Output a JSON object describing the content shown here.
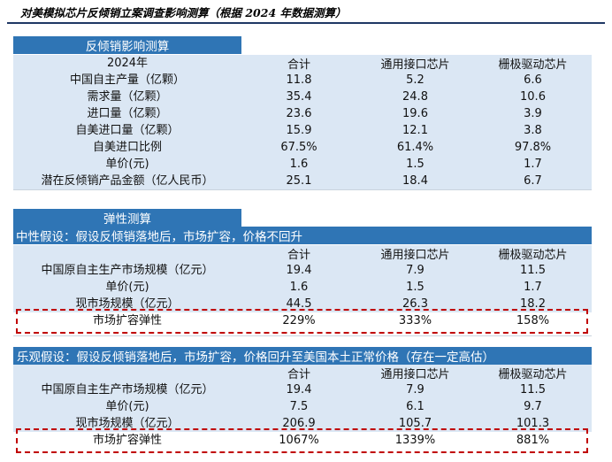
{
  "title": "对美模拟芯片反倾销立案调查影响测算（根据 2024 年数据测算）",
  "columns": [
    "合计",
    "通用接口芯片",
    "栅极驱动芯片"
  ],
  "table1": {
    "header": "反倾销影响测算",
    "year_label": "2024年",
    "rows": [
      {
        "label": "中国自主产量（亿颗）",
        "v": [
          "11.8",
          "5.2",
          "6.6"
        ]
      },
      {
        "label": "需求量（亿颗）",
        "v": [
          "35.4",
          "24.8",
          "10.6"
        ]
      },
      {
        "label": "进口量（亿颗）",
        "v": [
          "23.6",
          "19.6",
          "3.9"
        ]
      },
      {
        "label": "自美进口量（亿颗）",
        "v": [
          "15.9",
          "12.1",
          "3.8"
        ]
      },
      {
        "label": "自美进口比例",
        "v": [
          "67.5%",
          "61.4%",
          "97.8%"
        ]
      },
      {
        "label": "单价(元)",
        "v": [
          "1.6",
          "1.5",
          "1.7"
        ]
      },
      {
        "label": "潜在反倾销产品金额（亿人民币）",
        "v": [
          "25.1",
          "18.4",
          "6.7"
        ]
      }
    ]
  },
  "table2": {
    "header": "弹性测算",
    "scenario": "中性假设：假设反倾销落地后，市场扩容，价格不回升",
    "rows": [
      {
        "label": "中国原自主生产市场规模（亿元）",
        "v": [
          "19.4",
          "7.9",
          "11.5"
        ]
      },
      {
        "label": "单价(元)",
        "v": [
          "1.6",
          "1.5",
          "1.7"
        ]
      },
      {
        "label": "现市场规模（亿元）",
        "v": [
          "44.5",
          "26.3",
          "18.2"
        ]
      },
      {
        "label": "市场扩容弹性",
        "v": [
          "229%",
          "333%",
          "158%"
        ]
      }
    ]
  },
  "table3": {
    "scenario": "乐观假设：假设反倾销落地后，市场扩容，价格回升至美国本土正常价格（存在一定高估）",
    "rows": [
      {
        "label": "中国原自主生产市场规模（亿元）",
        "v": [
          "19.4",
          "7.9",
          "11.5"
        ]
      },
      {
        "label": "单价(元)",
        "v": [
          "7.5",
          "6.1",
          "9.7"
        ]
      },
      {
        "label": "现市场规模（亿元）",
        "v": [
          "206.9",
          "105.7",
          "101.3"
        ]
      },
      {
        "label": "市场扩容弹性",
        "v": [
          "1067%",
          "1339%",
          "881%"
        ]
      }
    ]
  },
  "colors": {
    "header_blue": "#2f75b5",
    "row_light": "#dbe7f4",
    "highlight_red": "#c00000"
  }
}
